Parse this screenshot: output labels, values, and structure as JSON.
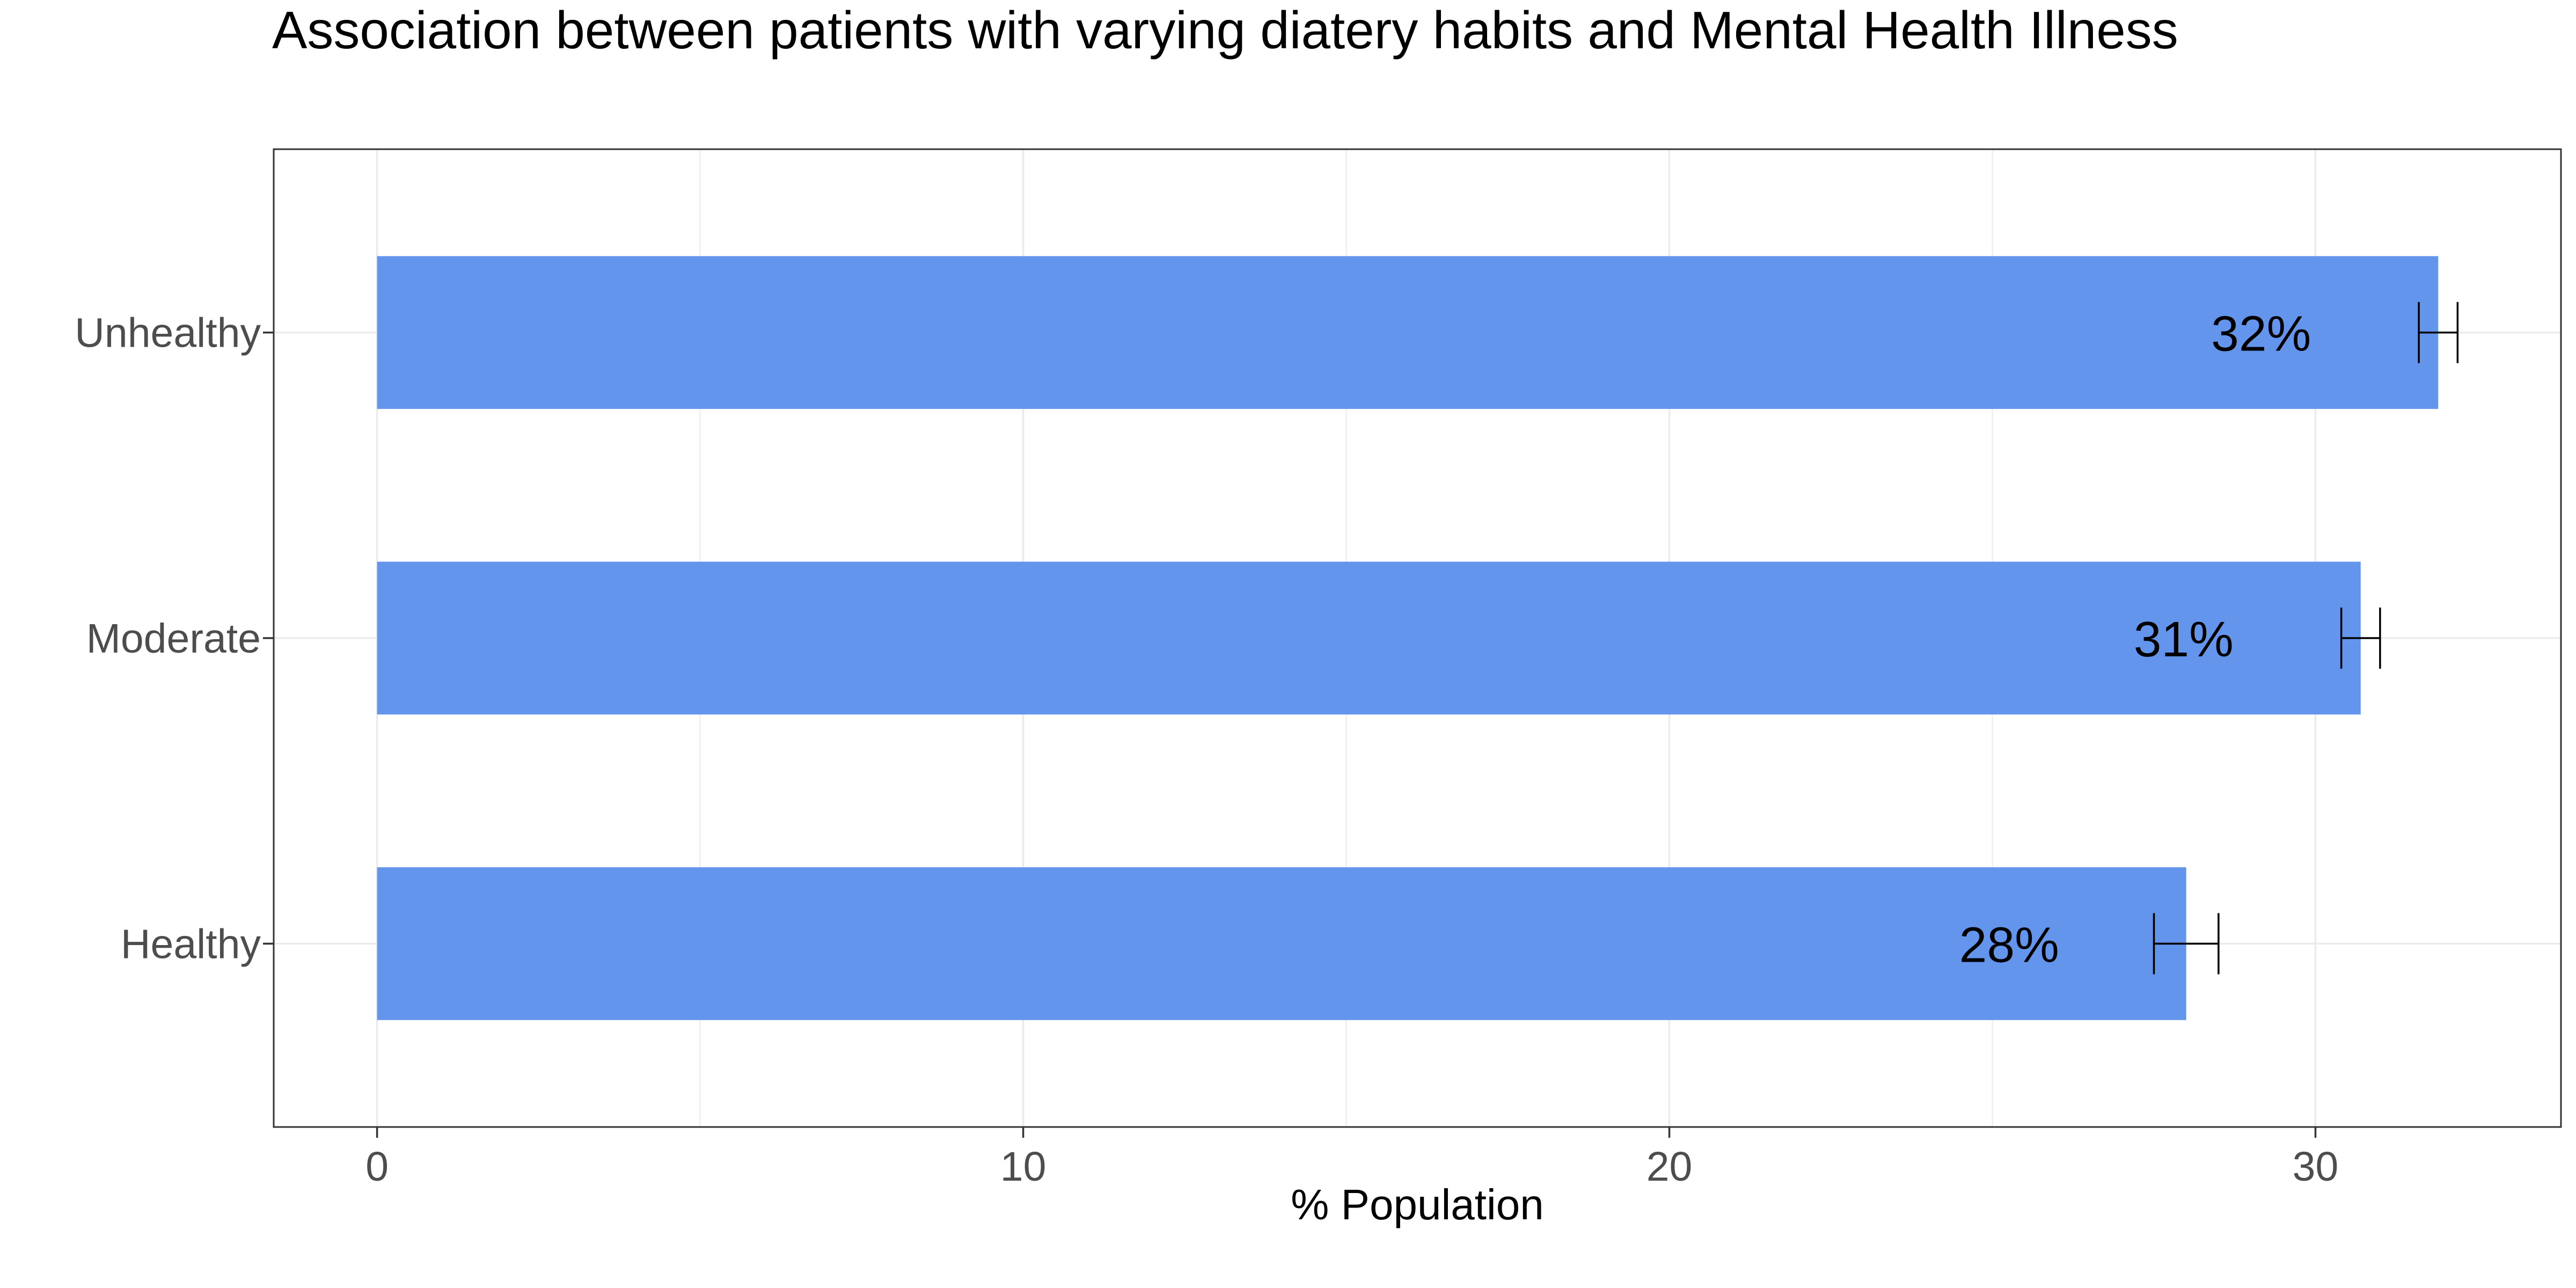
{
  "chart_data": {
    "type": "bar",
    "orientation": "horizontal",
    "title": "Association between patients with varying diatery habits and Mental Health Illness",
    "xlabel": "% Population",
    "ylabel": "",
    "categories": [
      "Healthy",
      "Moderate",
      "Unhealthy"
    ],
    "values": [
      28.0,
      30.7,
      31.9
    ],
    "error": [
      {
        "low": 27.5,
        "high": 28.5
      },
      {
        "low": 30.4,
        "high": 31.0
      },
      {
        "low": 31.6,
        "high": 32.2
      }
    ],
    "data_labels": [
      "28%",
      "31%",
      "32%"
    ],
    "xlim": [
      -1.6,
      33.8
    ],
    "xticks": [
      0,
      10,
      20,
      30
    ],
    "xtick_labels": [
      "0",
      "10",
      "20",
      "30"
    ],
    "grid": true,
    "legend": "none",
    "bar_color": "#6495ED",
    "error_bar_color": "#000000",
    "grid_color": "#ebebeb",
    "panel_border_color": "#333333"
  }
}
